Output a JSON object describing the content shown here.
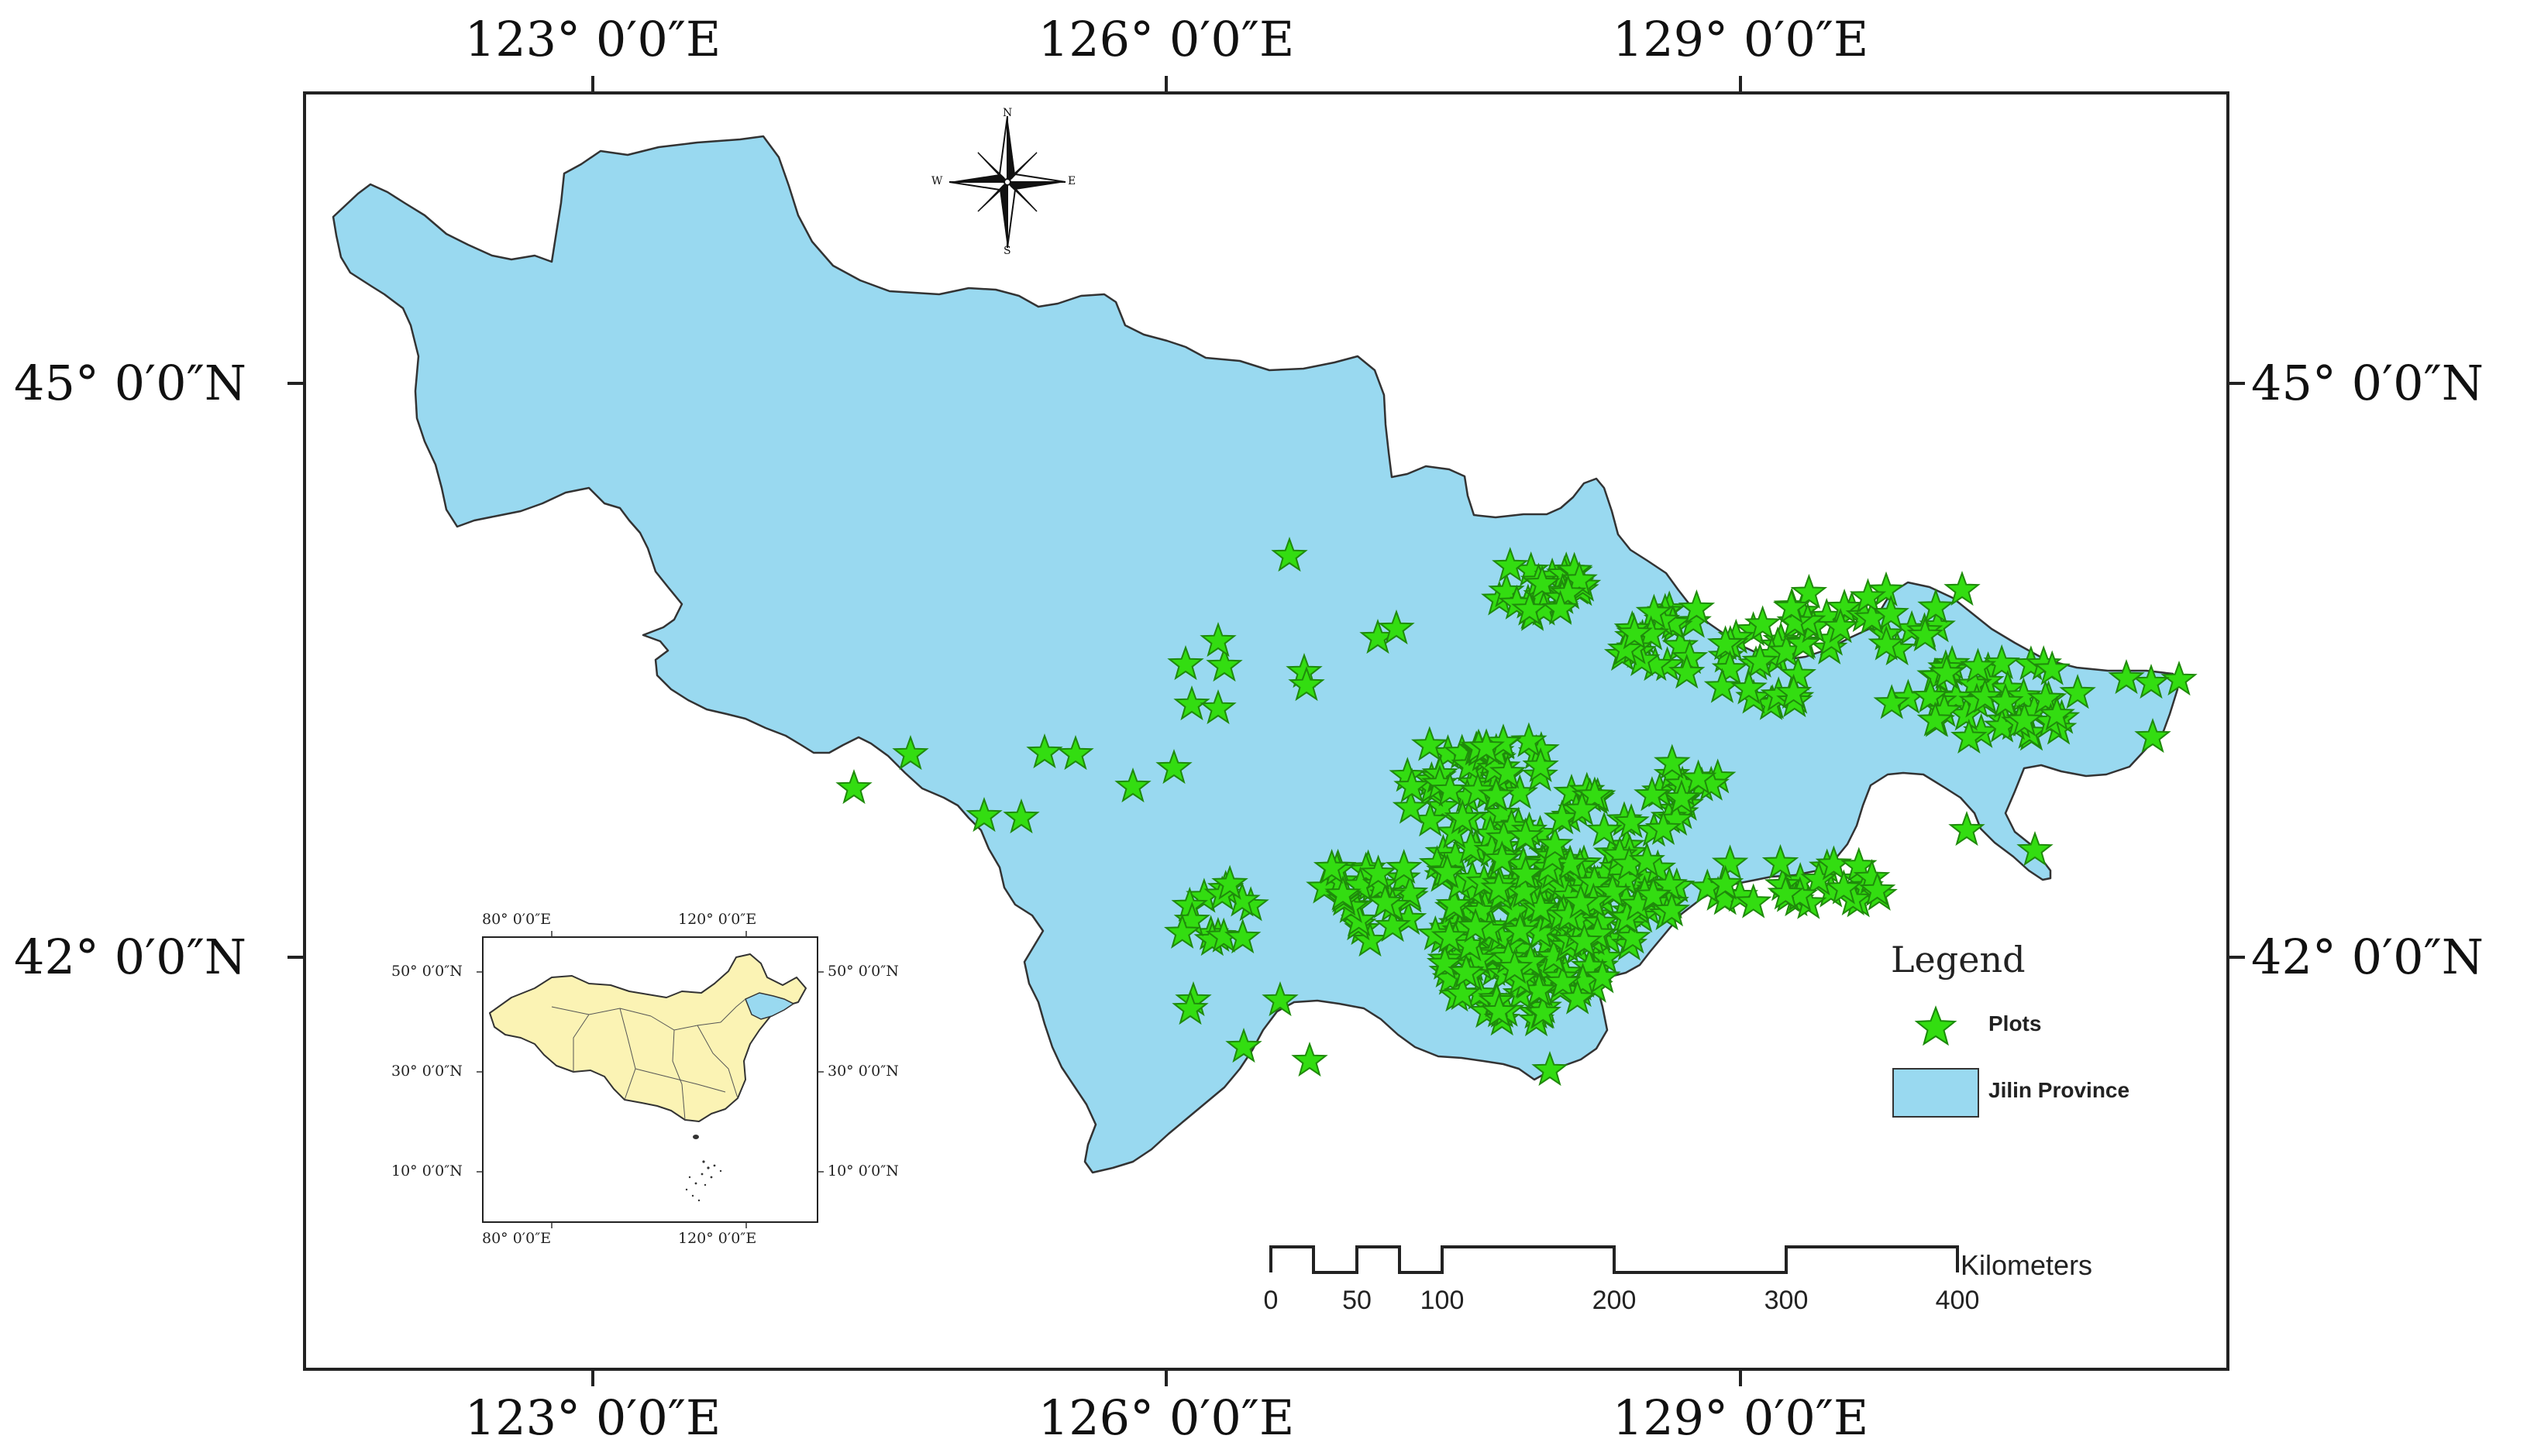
{
  "graticule": {
    "lon_labels_top": [
      "123° 0′0″E",
      "126° 0′0″E",
      "129° 0′0″E"
    ],
    "lon_labels_bottom": [
      "123° 0′0″E",
      "126° 0′0″E",
      "129° 0′0″E"
    ],
    "lat_labels_left": [
      "45° 0′0″N",
      "42° 0′0″N"
    ],
    "lat_labels_right": [
      "45° 0′0″N",
      "42° 0′0″N"
    ]
  },
  "compass": {
    "n": "N",
    "s": "S",
    "e": "E",
    "w": "W"
  },
  "legend": {
    "title": "Legend",
    "plots_label": "Plots",
    "province_label": "Jilin Province",
    "plot_color": "#33dd11",
    "province_color": "#99d9f0"
  },
  "scale_bar": {
    "unit": "Kilometers",
    "ticks": [
      "0",
      "50",
      "100",
      "200",
      "300",
      "400"
    ]
  },
  "inset": {
    "lon_top": [
      "80° 0′0″E",
      "120° 0′0″E"
    ],
    "lon_bottom": [
      "80° 0′0″E",
      "120° 0′0″E"
    ],
    "lat_left": [
      "50° 0′0″N",
      "30° 0′0″N",
      "10° 0′0″N"
    ],
    "lat_right": [
      "50° 0′0″N",
      "30° 0′0″N",
      "10° 0′0″N"
    ],
    "china_color": "#fbf3b4",
    "highlight_color": "#99d9f0"
  }
}
